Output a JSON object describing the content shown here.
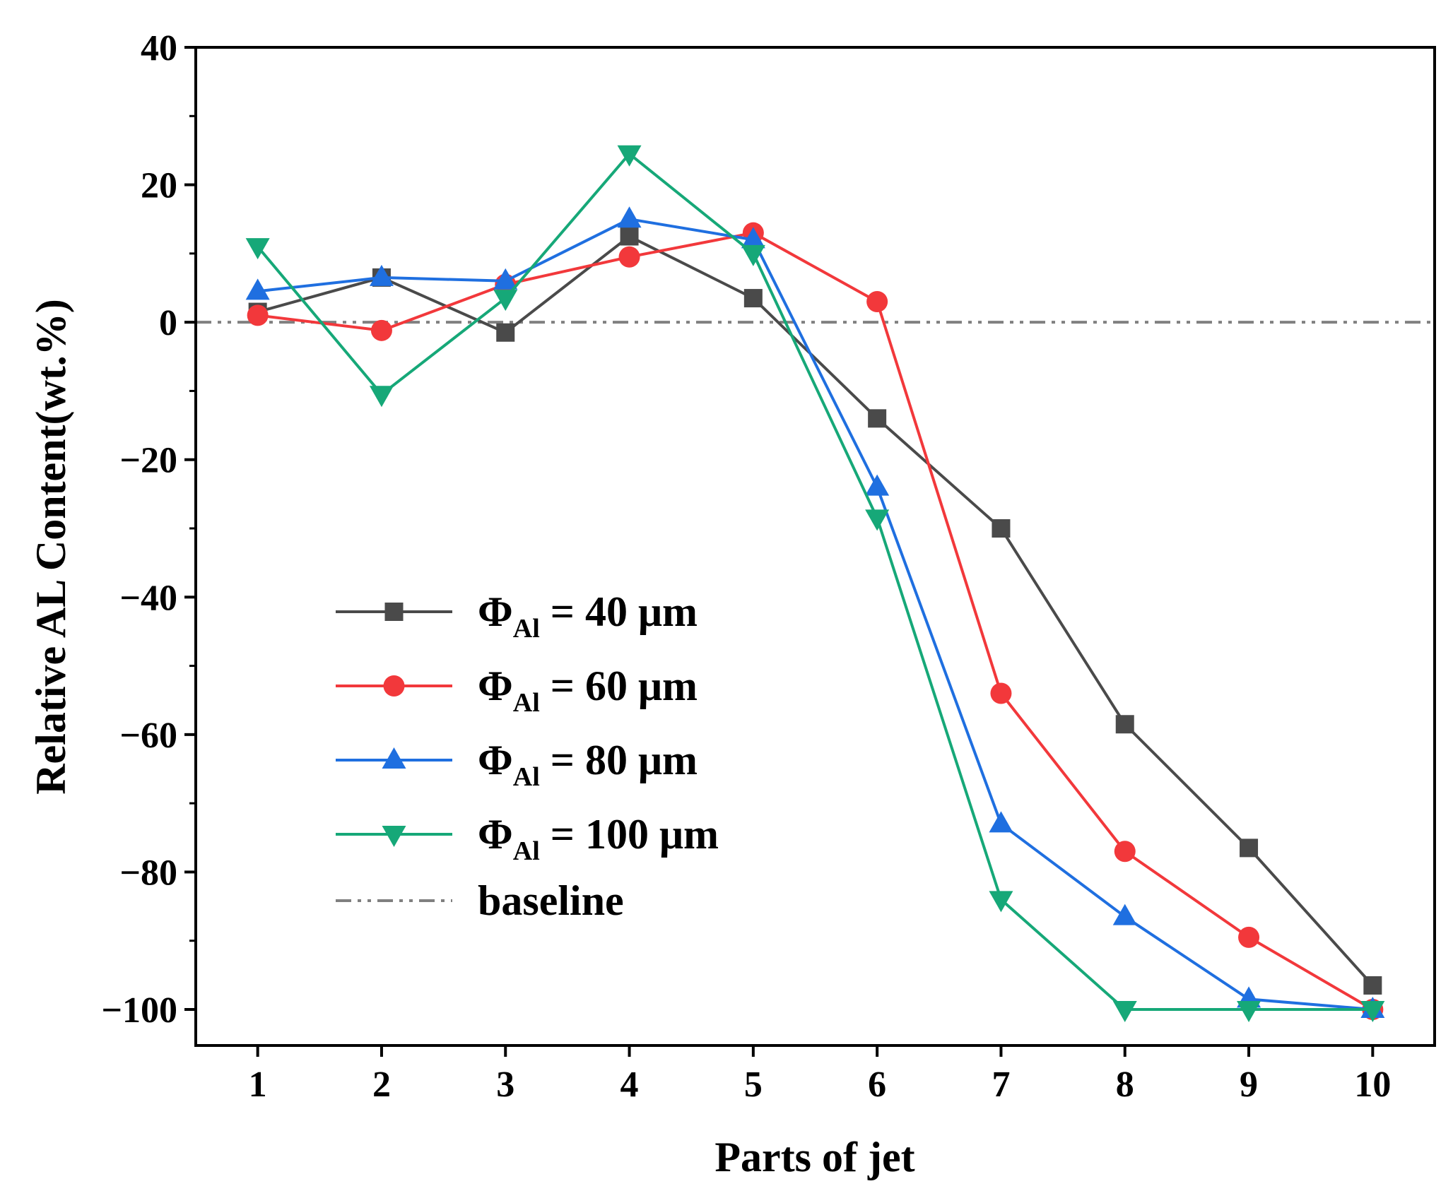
{
  "chart_data": {
    "type": "line",
    "title": "",
    "xlabel": "Parts of jet",
    "ylabel": "Relative AL Content(wt.%)",
    "x": [
      1,
      2,
      3,
      4,
      5,
      6,
      7,
      8,
      9,
      10
    ],
    "xlim": [
      0.5,
      10.5
    ],
    "ylim": [
      -105,
      40
    ],
    "x_ticks": [
      "1",
      "2",
      "3",
      "4",
      "5",
      "6",
      "7",
      "8",
      "9",
      "10"
    ],
    "y_ticks": [
      40,
      20,
      0,
      -20,
      -40,
      -60,
      -80,
      -100
    ],
    "y_tick_labels": [
      "40",
      "20",
      "0",
      "−20",
      "−40",
      "−60",
      "−80",
      "−100"
    ],
    "grid": false,
    "legend_position": "lower-left",
    "baseline": {
      "value": 0,
      "label": "baseline",
      "color": "#808080"
    },
    "series": [
      {
        "name": "ΦAl = 40 μm",
        "legend_symbol": "Φ",
        "legend_sub": "Al",
        "legend_rest": " = 40 μm",
        "color": "#4a4a4a",
        "marker": "square",
        "values": [
          1.5,
          6.5,
          -1.5,
          12.5,
          3.5,
          -14,
          -30,
          -58.5,
          -76.5,
          -96.5
        ]
      },
      {
        "name": "ΦAl = 60 μm",
        "legend_symbol": "Φ",
        "legend_sub": "Al",
        "legend_rest": " = 60 μm",
        "color": "#f2383b",
        "marker": "circle",
        "values": [
          1,
          -1.2,
          5.5,
          9.5,
          13,
          3,
          -54,
          -77,
          -89.5,
          -100
        ]
      },
      {
        "name": "ΦAl = 80 μm",
        "legend_symbol": "Φ",
        "legend_sub": "Al",
        "legend_rest": " = 80 μm",
        "color": "#1f6fe0",
        "marker": "triangle-up",
        "values": [
          4.5,
          6.5,
          6,
          15,
          12,
          -24,
          -73,
          -86.5,
          -98.5,
          -100
        ]
      },
      {
        "name": "ΦAl = 100 μm",
        "legend_symbol": "Φ",
        "legend_sub": "Al",
        "legend_rest": " = 100 μm",
        "color": "#16a878",
        "marker": "triangle-down",
        "values": [
          11,
          -10.5,
          3.5,
          24.5,
          10,
          -28.5,
          -84,
          -100,
          -100,
          -100
        ]
      }
    ]
  }
}
